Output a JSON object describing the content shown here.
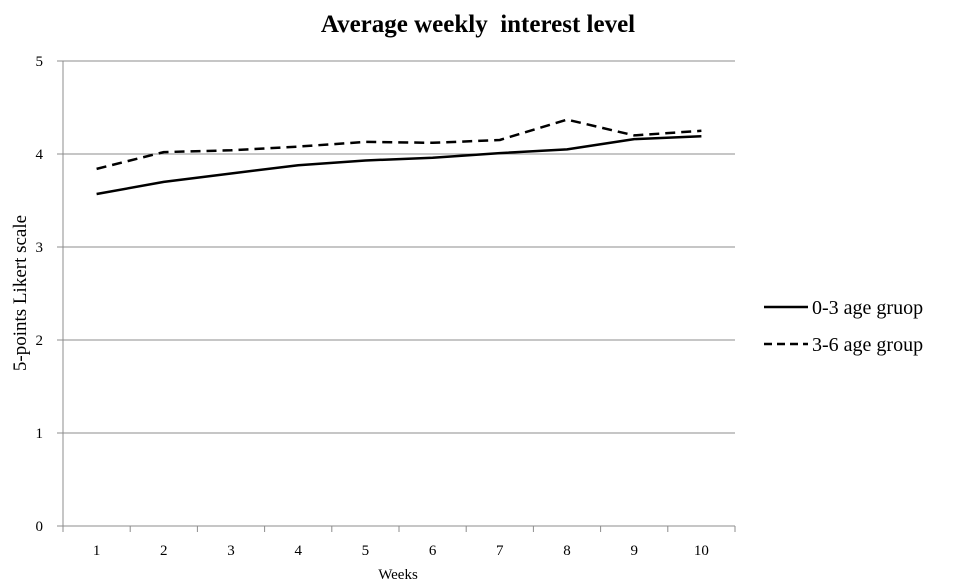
{
  "chart_data": {
    "type": "line",
    "title": "Average weekly  interest level",
    "xlabel": "Weeks",
    "ylabel": "5-points Likert scale",
    "categories": [
      "1",
      "2",
      "3",
      "4",
      "5",
      "6",
      "7",
      "8",
      "9",
      "10"
    ],
    "ylim": [
      0,
      5
    ],
    "yticks": [
      "0",
      "1",
      "2",
      "3",
      "4",
      "5"
    ],
    "grid": "horizontal",
    "legend_position": "right",
    "series": [
      {
        "name": "0-3 age gruop",
        "line_style": "solid",
        "color": "#000000",
        "values": [
          3.57,
          3.7,
          3.79,
          3.88,
          3.93,
          3.96,
          4.01,
          4.05,
          4.16,
          4.19
        ]
      },
      {
        "name": "3-6 age group",
        "line_style": "dashed",
        "color": "#000000",
        "values": [
          3.84,
          4.02,
          4.04,
          4.08,
          4.13,
          4.12,
          4.15,
          4.37,
          4.2,
          4.25
        ]
      }
    ]
  }
}
